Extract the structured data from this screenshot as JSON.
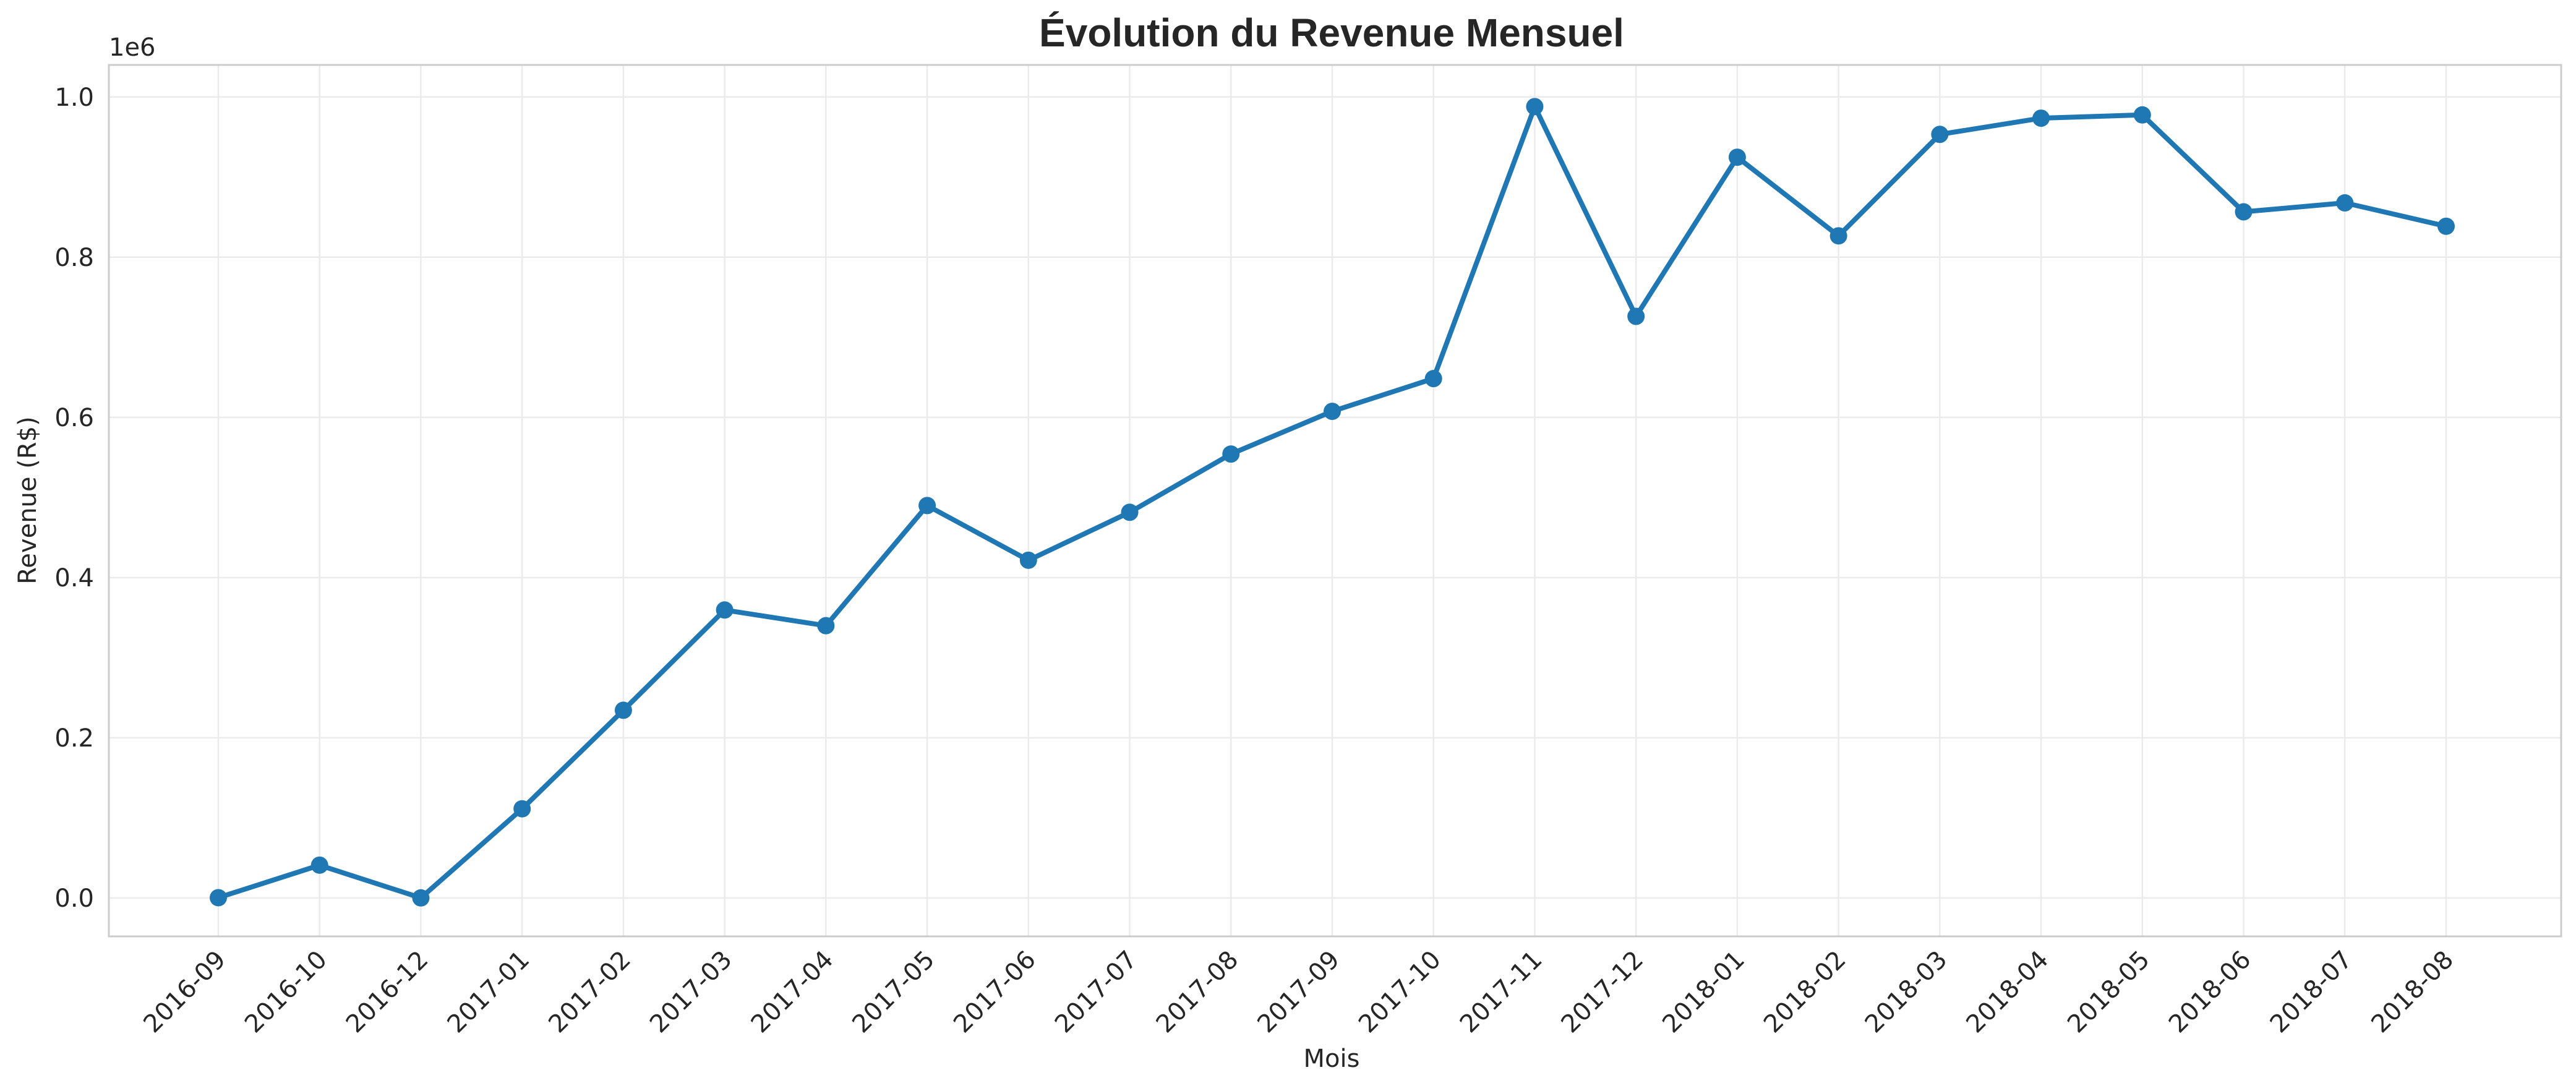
{
  "chart_data": {
    "type": "line",
    "title": "Évolution du Revenue Mensuel",
    "xlabel": "Mois",
    "ylabel": "Revenue (R$)",
    "y_multiplier_label": "1e6",
    "y_multiplier": 1000000,
    "ylim": [
      -0.048,
      1.04
    ],
    "yticks": [
      0.0,
      0.2,
      0.4,
      0.6,
      0.8,
      1.0
    ],
    "ytick_labels": [
      "0.0",
      "0.2",
      "0.4",
      "0.6",
      "0.8",
      "1.0"
    ],
    "grid": true,
    "legend": "none",
    "x_tick_rotation": 45,
    "series": [
      {
        "color": "#1f77b4",
        "marker": "circle",
        "x": [
          "2016-09",
          "2016-10",
          "2016-12",
          "2017-01",
          "2017-02",
          "2017-03",
          "2017-04",
          "2017-05",
          "2017-06",
          "2017-07",
          "2017-08",
          "2017-09",
          "2017-10",
          "2017-11",
          "2017-12",
          "2018-01",
          "2018-02",
          "2018-03",
          "2018-04",
          "2018-05",
          "2018-06",
          "2018-07",
          "2018-08"
        ],
        "values": [
          0.0003,
          0.0409,
          2e-05,
          0.1113,
          0.2343,
          0.3595,
          0.3399,
          0.4899,
          0.4216,
          0.4815,
          0.5542,
          0.6075,
          0.6484,
          0.988,
          0.7261,
          0.9248,
          0.8266,
          0.9533,
          0.9735,
          0.9776,
          0.8566,
          0.8678,
          0.8386
        ]
      }
    ]
  }
}
